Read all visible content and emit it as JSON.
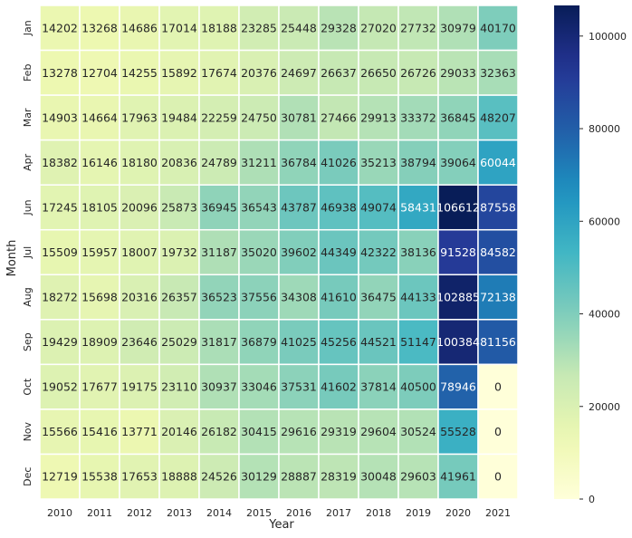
{
  "chart_data": {
    "type": "heatmap",
    "title": "",
    "xlabel": "Year",
    "ylabel": "Month",
    "x": [
      "2010",
      "2011",
      "2012",
      "2013",
      "2014",
      "2015",
      "2016",
      "2017",
      "2018",
      "2019",
      "2020",
      "2021"
    ],
    "y": [
      "Jan",
      "Feb",
      "Mar",
      "Apr",
      "Jun",
      "Jul",
      "Aug",
      "Sep",
      "Oct",
      "Nov",
      "Dec"
    ],
    "values": [
      [
        14202,
        13268,
        14686,
        17014,
        18188,
        23285,
        25448,
        29328,
        27020,
        27732,
        30979,
        40170
      ],
      [
        13278,
        12704,
        14255,
        15892,
        17674,
        20376,
        24697,
        26637,
        26650,
        26726,
        29033,
        32363
      ],
      [
        14903,
        14664,
        17963,
        19484,
        22259,
        24750,
        30781,
        27466,
        29913,
        33372,
        36845,
        48207
      ],
      [
        18382,
        16146,
        18180,
        20836,
        24789,
        31211,
        36784,
        41026,
        35213,
        38794,
        39064,
        60044
      ],
      [
        17245,
        18105,
        20096,
        25873,
        36945,
        36543,
        43787,
        46938,
        49074,
        58431,
        106612,
        87558
      ],
      [
        15509,
        15957,
        18007,
        19732,
        31187,
        35020,
        39602,
        44349,
        42322,
        38136,
        91528,
        84582
      ],
      [
        18272,
        15698,
        20316,
        26357,
        36523,
        37556,
        34308,
        41610,
        36475,
        44133,
        102885,
        72138
      ],
      [
        19429,
        18909,
        23646,
        25029,
        31817,
        36879,
        41025,
        45256,
        44521,
        51147,
        100384,
        81156
      ],
      [
        19052,
        17677,
        19175,
        23110,
        30937,
        33046,
        37531,
        41602,
        37814,
        40500,
        78946,
        0
      ],
      [
        15566,
        15416,
        13771,
        20146,
        26182,
        30415,
        29616,
        29319,
        29604,
        30524,
        55528,
        0
      ],
      [
        12719,
        15538,
        17653,
        18888,
        24526,
        30129,
        28887,
        28319,
        30048,
        29603,
        41961,
        0
      ]
    ],
    "vmin": 0,
    "vmax": 106612,
    "colormap": "YlGnBu",
    "colorbar_ticks": [
      "0",
      "20000",
      "40000",
      "60000",
      "80000",
      "100000"
    ],
    "cell_labels": true,
    "grid_lines": "white"
  }
}
